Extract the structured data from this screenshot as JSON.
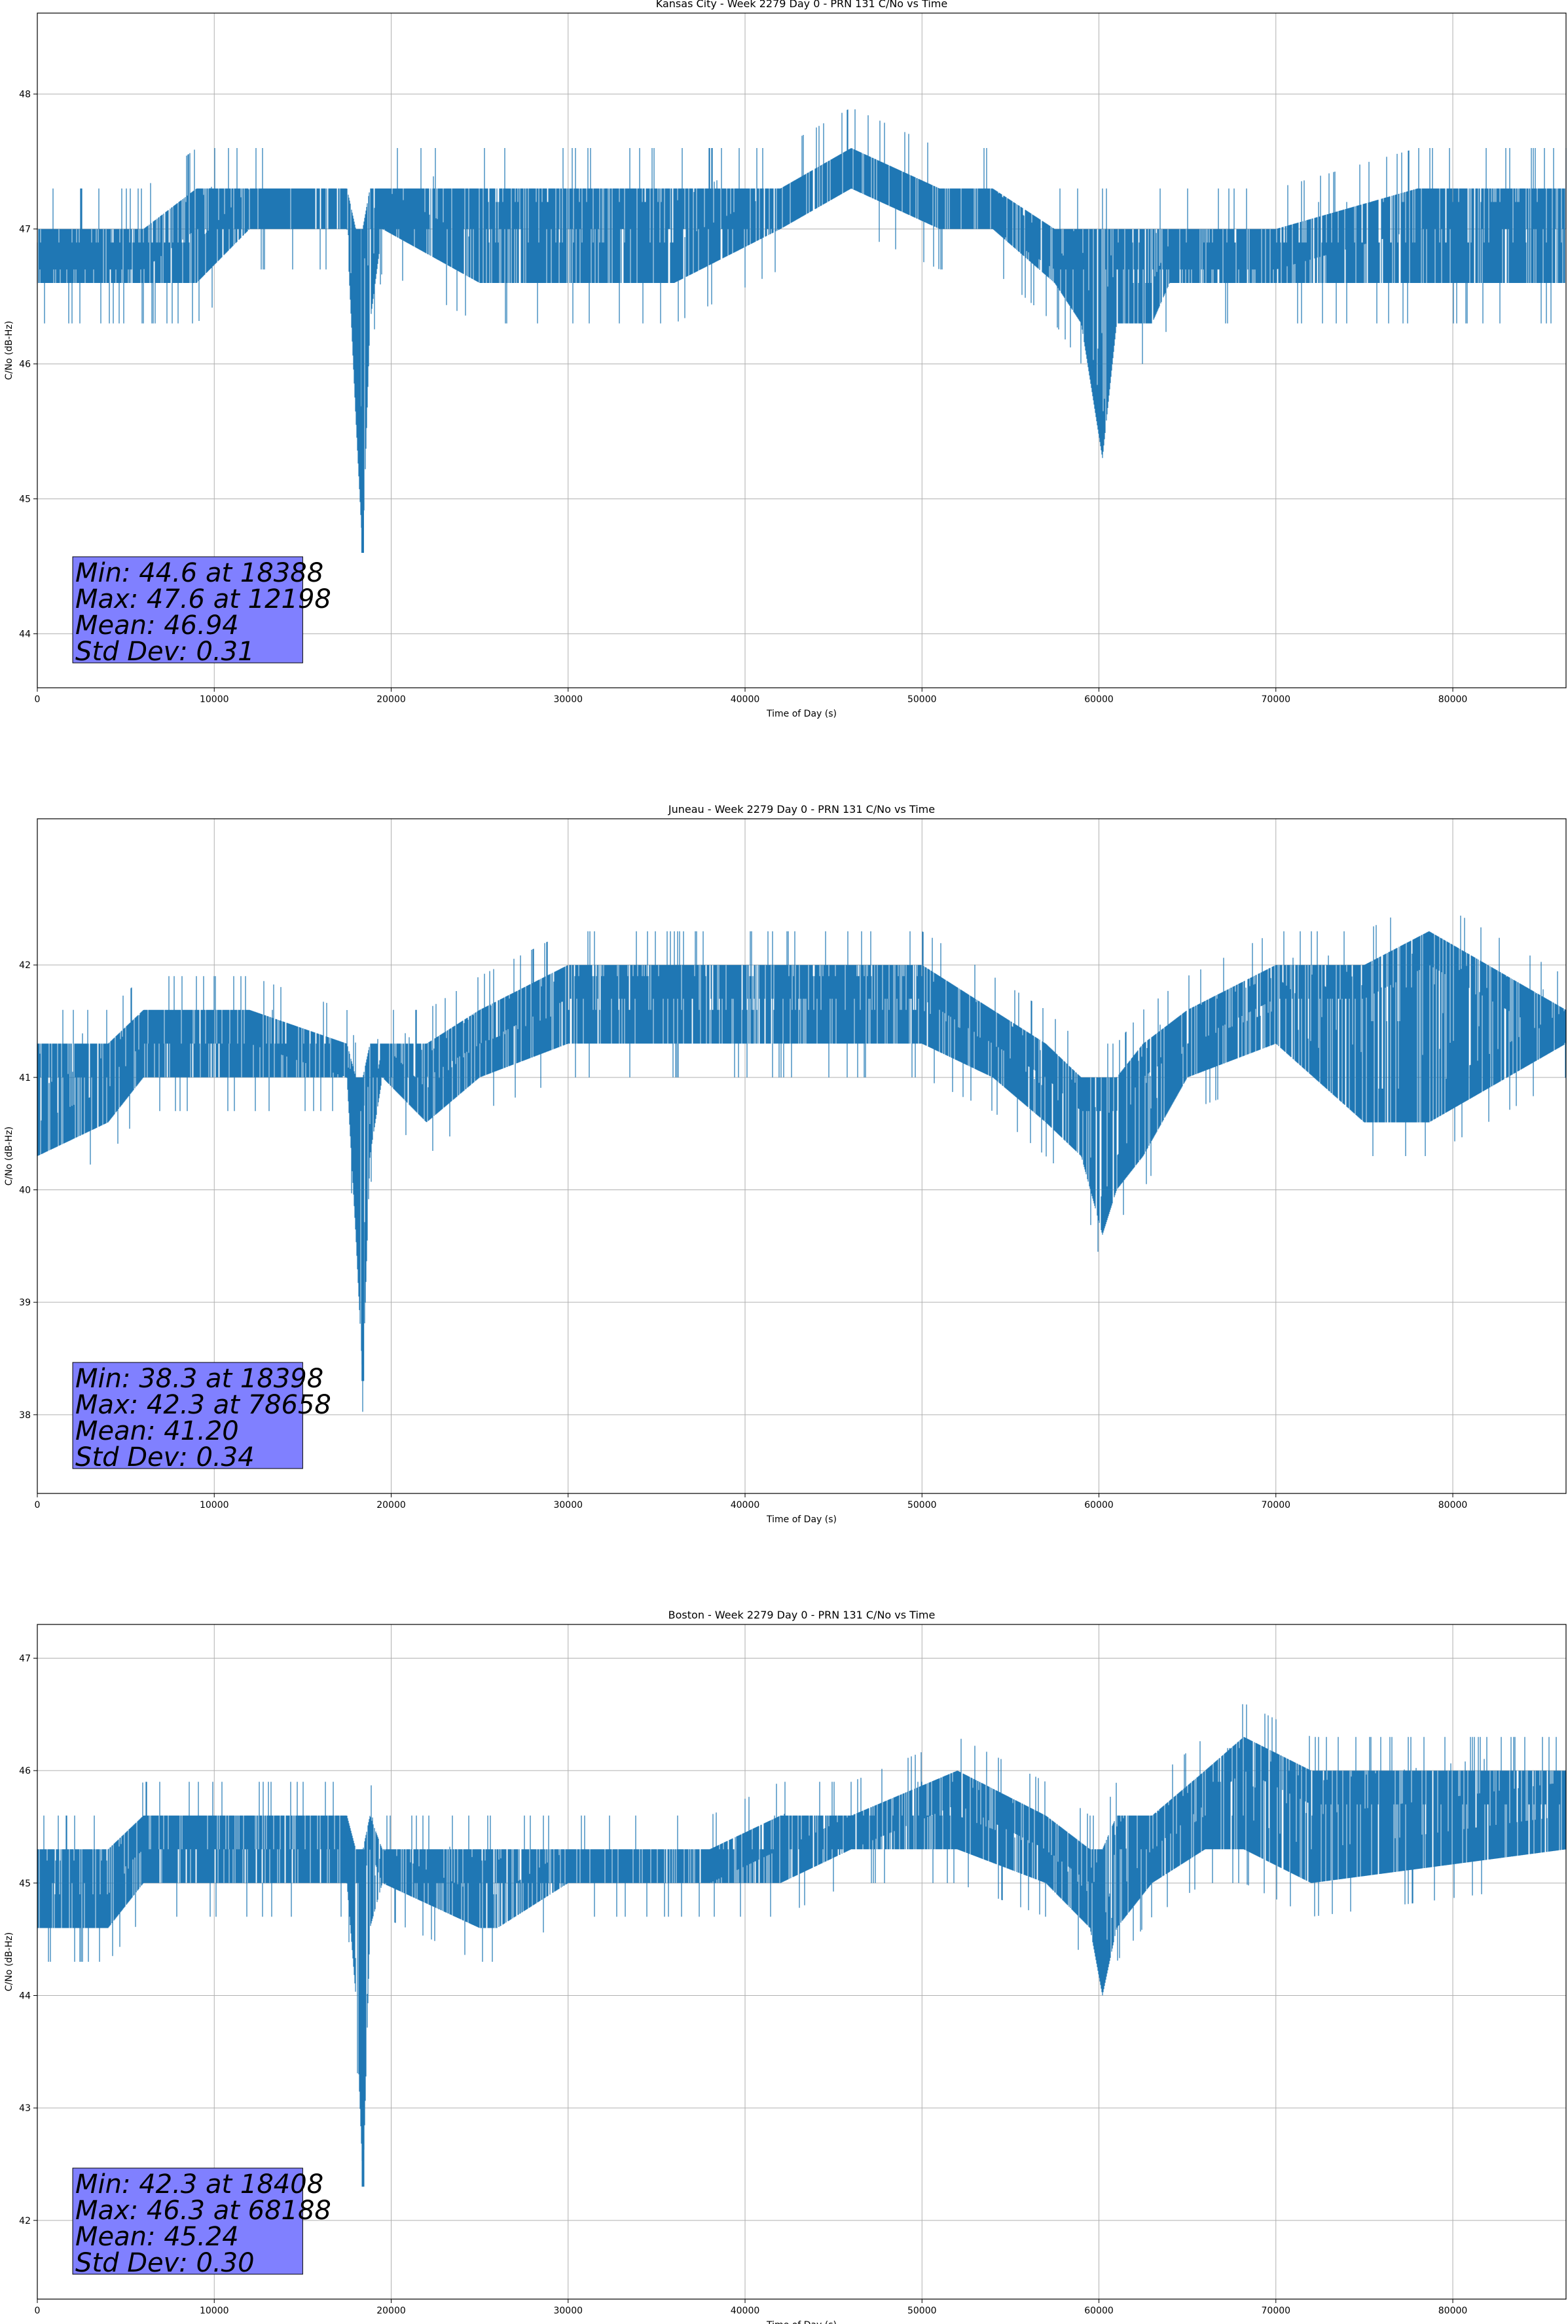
{
  "figure": {
    "background": "#ffffff",
    "line_color": "#1f77b4",
    "stats_box_color": "#8080ff"
  },
  "chart_data": [
    {
      "type": "line",
      "title": "Kansas City - Week 2279 Day 0 - PRN 131 C/No vs Time",
      "xlabel": "Time of Day (s)",
      "ylabel": "C/No (dB-Hz)",
      "xlim": [
        0,
        86400
      ],
      "ylim": [
        43.6,
        48.6
      ],
      "xticks": [
        0,
        10000,
        20000,
        30000,
        40000,
        50000,
        60000,
        70000,
        80000
      ],
      "yticks": [
        44,
        45,
        46,
        47,
        48
      ],
      "grid": true,
      "legend": "none",
      "stats": [
        "Min: 44.6 at 18388",
        "Max: 47.6 at 12198",
        "Mean: 46.94",
        "Std Dev: 0.31"
      ],
      "series": [
        {
          "color": "#1f77b4",
          "x": [
            0,
            6000,
            9000,
            12000,
            17500,
            18000,
            18388,
            18800,
            19500,
            25000,
            30000,
            36000,
            42000,
            46000,
            51000,
            54000,
            57500,
            59000,
            60200,
            61000,
            63000,
            64000,
            70000,
            78000,
            86400
          ],
          "lo": [
            46.6,
            46.6,
            46.6,
            47.0,
            47.0,
            45.6,
            44.6,
            46.3,
            47.0,
            46.6,
            46.6,
            46.6,
            47.0,
            47.3,
            47.0,
            47.0,
            46.6,
            46.3,
            45.3,
            46.3,
            46.3,
            46.6,
            46.6,
            46.6,
            46.6
          ],
          "hi": [
            47.0,
            47.0,
            47.3,
            47.3,
            47.3,
            47.0,
            47.0,
            47.3,
            47.3,
            47.3,
            47.3,
            47.3,
            47.3,
            47.6,
            47.3,
            47.3,
            47.0,
            47.0,
            47.0,
            47.0,
            47.0,
            47.0,
            47.0,
            47.3,
            47.3
          ]
        }
      ]
    },
    {
      "type": "line",
      "title": "Juneau - Week 2279 Day 0 - PRN 131 C/No vs Time",
      "xlabel": "Time of Day (s)",
      "ylabel": "C/No (dB-Hz)",
      "xlim": [
        0,
        86400
      ],
      "ylim": [
        37.3,
        43.3
      ],
      "xticks": [
        0,
        10000,
        20000,
        30000,
        40000,
        50000,
        60000,
        70000,
        80000
      ],
      "yticks": [
        38,
        39,
        40,
        41,
        42
      ],
      "grid": true,
      "legend": "none",
      "stats": [
        "Min: 38.3 at 18398",
        "Max: 42.3 at 78658",
        "Mean: 41.20",
        "Std Dev: 0.34"
      ],
      "series": [
        {
          "color": "#1f77b4",
          "x": [
            0,
            4000,
            6000,
            12000,
            17500,
            18000,
            18398,
            18800,
            19500,
            22000,
            25000,
            30000,
            40000,
            50000,
            54000,
            57000,
            59000,
            60200,
            61000,
            62500,
            65000,
            70000,
            75000,
            78658,
            86400
          ],
          "lo": [
            40.3,
            40.6,
            41.0,
            41.0,
            41.0,
            39.6,
            38.3,
            40.3,
            41.0,
            40.6,
            41.0,
            41.3,
            41.3,
            41.3,
            41.0,
            40.6,
            40.3,
            39.6,
            40.0,
            40.3,
            41.0,
            41.3,
            40.6,
            40.6,
            41.3
          ],
          "hi": [
            41.3,
            41.3,
            41.6,
            41.6,
            41.3,
            41.0,
            41.0,
            41.3,
            41.3,
            41.3,
            41.6,
            42.0,
            42.0,
            42.0,
            41.6,
            41.3,
            41.0,
            41.0,
            41.0,
            41.3,
            41.6,
            42.0,
            42.0,
            42.3,
            41.6
          ]
        }
      ]
    },
    {
      "type": "line",
      "title": "Boston - Week 2279 Day 0 - PRN 131 C/No vs Time",
      "xlabel": "Time of Day (s)",
      "ylabel": "C/No (dB-Hz)",
      "xlim": [
        0,
        86400
      ],
      "ylim": [
        41.3,
        47.3
      ],
      "xticks": [
        0,
        10000,
        20000,
        30000,
        40000,
        50000,
        60000,
        70000,
        80000
      ],
      "yticks": [
        42,
        43,
        44,
        45,
        46,
        47
      ],
      "grid": true,
      "legend": "none",
      "stats": [
        "Min: 42.3 at 18408",
        "Max: 46.3 at 68188",
        "Mean: 45.24",
        "Std Dev: 0.30"
      ],
      "series": [
        {
          "color": "#1f77b4",
          "x": [
            0,
            4000,
            6000,
            12000,
            17500,
            18000,
            18408,
            18800,
            19500,
            25000,
            26000,
            30000,
            38000,
            42000,
            46000,
            52000,
            57000,
            59500,
            60200,
            61000,
            63000,
            66000,
            68188,
            72000,
            86400
          ],
          "lo": [
            44.6,
            44.6,
            45.0,
            45.0,
            45.0,
            44.0,
            42.3,
            44.6,
            45.0,
            44.6,
            44.6,
            45.0,
            45.0,
            45.0,
            45.3,
            45.3,
            45.0,
            44.6,
            44.0,
            44.6,
            45.0,
            45.3,
            45.3,
            45.0,
            45.3
          ],
          "hi": [
            45.3,
            45.3,
            45.6,
            45.6,
            45.6,
            45.3,
            45.3,
            45.6,
            45.3,
            45.3,
            45.3,
            45.3,
            45.3,
            45.6,
            45.6,
            46.0,
            45.6,
            45.3,
            45.3,
            45.6,
            45.6,
            46.0,
            46.3,
            46.0,
            46.0
          ]
        }
      ]
    }
  ]
}
